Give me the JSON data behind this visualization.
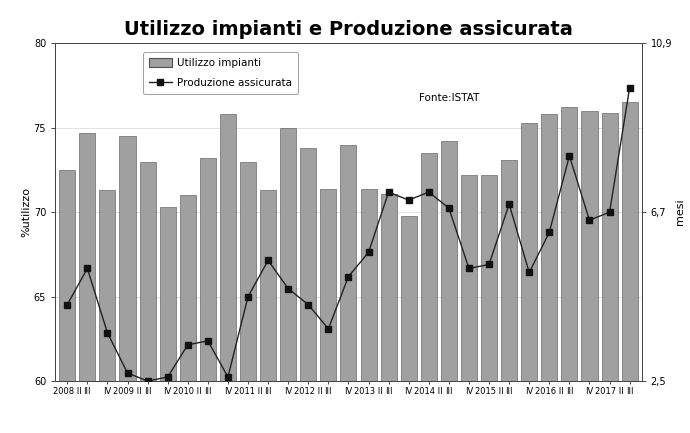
{
  "title": "Utilizzo impianti e Produzione assicurata",
  "ylabel_left": "%utilizzo",
  "ylabel_right": "mesi",
  "ylim_left": [
    60,
    80
  ],
  "ylim_right": [
    2.5,
    10.9
  ],
  "yticks_left": [
    60,
    65,
    70,
    75,
    80
  ],
  "yticks_right": [
    2.5,
    6.7,
    10.9
  ],
  "yticks_right_str": [
    "2,5",
    "6,7",
    "10,9"
  ],
  "fonte": "Fonte:ISTAT",
  "bar_color": "#a0a0a0",
  "bar_edge_color": "#505050",
  "line_color": "#222222",
  "marker_color": "#111111",
  "bar_values": [
    72.5,
    74.7,
    71.3,
    74.5,
    73.0,
    70.3,
    71.0,
    73.2,
    75.8,
    73.0,
    71.3,
    75.0,
    73.8,
    71.4,
    74.0,
    71.4,
    71.1,
    69.8,
    73.5,
    74.2,
    72.2,
    72.2,
    73.1,
    75.3,
    75.8,
    76.2,
    76.0,
    75.9,
    76.5
  ],
  "line_values_mesi": [
    4.4,
    5.3,
    3.7,
    2.7,
    2.5,
    2.6,
    3.4,
    3.5,
    2.6,
    4.6,
    5.5,
    4.8,
    4.4,
    3.8,
    5.1,
    5.7,
    7.2,
    7.0,
    7.2,
    6.8,
    5.3,
    5.4,
    6.9,
    5.2,
    6.2,
    8.1,
    6.5,
    6.7,
    9.8
  ],
  "xtick_display": [
    "2008 II",
    "III",
    "IV",
    "2009 II",
    "III",
    "IV",
    "2010 II",
    "III",
    "IV",
    "2011 II",
    "III",
    "IV",
    "2012 II",
    "III",
    "IV",
    "2013 II",
    "III",
    "IV",
    "2014 II",
    "III",
    "IV",
    "2015 II",
    "III",
    "IV",
    "2016 II",
    "III",
    "IV",
    "2017 II",
    "III"
  ],
  "legend_bar": "Utilizzo impianti",
  "legend_line": "Produzione assicurata",
  "title_fontsize": 14,
  "tick_fontsize": 7,
  "label_fontsize": 8
}
